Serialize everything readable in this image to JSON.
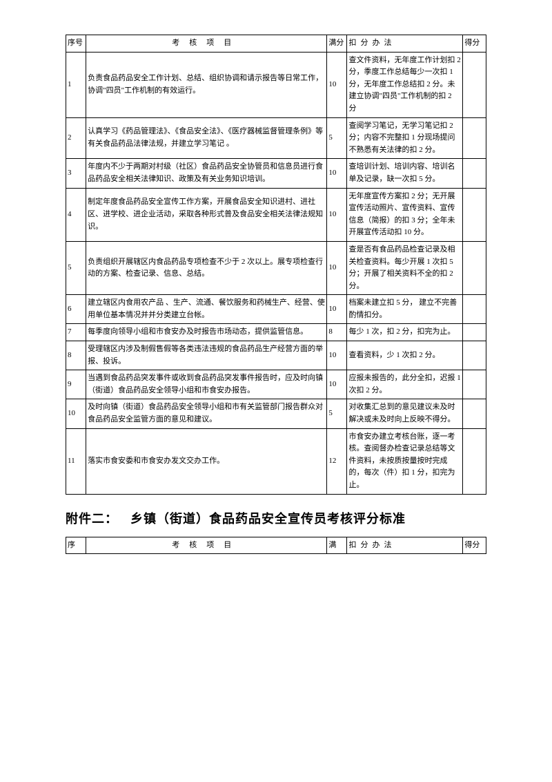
{
  "header": {
    "seq": "序号",
    "item_spaced": "考核项目",
    "score": "满分",
    "method_spaced": "扣分办法",
    "final": "得分"
  },
  "rows": [
    {
      "seq": "1",
      "item": "负责食品药品安全工作计划、总结、组织协调和请示报告等日常工作，协调\"四员\"工作机制的有效运行。",
      "score": "10",
      "method": "查文件资料，无年度工作计划扣 2 分，季度工作总结每少一次扣 1 分，无年度工作总结扣 2 分。未建立协调\"四员\"工作机制的扣 2 分"
    },
    {
      "seq": "2",
      "item": "认真学习《药品管理法》、《食品安全法》、《医疗器械监督管理条例》等有关食品药品法律法规，并建立学习笔记 。",
      "score": "5",
      "method": "查阅学习笔记，无学习笔记扣 2 分；内容不完整扣 1 分现场提问不熟悉有关法律的扣 2 分。"
    },
    {
      "seq": "3",
      "item": "年度内不少于两期对村级（社区）食品药品安全协管员和信息员进行食品药品安全相关法律知识、政策及有关业务知识培训。",
      "score": "10",
      "method": "查培训计划、培训内容、培训名单及记录，缺一次扣 5 分。"
    },
    {
      "seq": "4",
      "item": "制定年度食品药品安全宣传工作方案，开展食品安全知识进村、进社区、进学校、进企业活动，采取各种形式普及食品安全相关法律法规知识。",
      "score": "10",
      "method": "无年度宣传方案扣 2 分；无开展宣传活动照片、宣传资料、宣传信息（简报）的扣 3 分；全年未开展宣传活动扣 10 分。"
    },
    {
      "seq": "5",
      "item": "负责组织开展辖区内食品药品专项检查不少于 2 次以上。展专项检查行动的方案、检查记录、信息、总结。",
      "score": "10",
      "method": "查是否有食品药品检查记录及相关检查资料。每少开展 1 次扣 5 分；开展了相关资料不全的扣 2 分。"
    },
    {
      "seq": "6",
      "item": "建立辖区内食用农产品 、生产、流通、餐饮服务和药械生产、经营、使用单位基本情况并并分类建立台帐。",
      "score": "10",
      "method": "档案未建立扣 5 分， 建立不完善酌情扣分。"
    },
    {
      "seq": "7",
      "item": "每季度向领导小组和市食安办及时报告市场动态，提供监管信息。",
      "score": "8",
      "method": "每少 1 次，扣 2 分，扣完为止。"
    },
    {
      "seq": "8",
      "item": "受理辖区内涉及制假售假等各类违法违规的食品药品生产经营方面的举报、投诉。",
      "score": "10",
      "method": "查看资料，少 1 次扣 2 分。"
    },
    {
      "seq": "9",
      "item": "当遇到食品药品突发事件或收到食品药品突发事件报告时，应及时向镇（街道）食品药品安全领导小组和市食安办报告。",
      "score": "10",
      "method": " 应报未报告的，此分全扣，迟报 1 次扣 2 分。"
    },
    {
      "seq": "10",
      "item": "及时向镇（街道）食品药品安全领导小组和市有关监管部门报告群众对食品药品安全监管方面的意见和建议。",
      "score": "5",
      "method": "对收集汇总到的意见建议未及时解决或未及时向上反映不得分。"
    },
    {
      "seq": "11",
      "item": "落实市食安委和市食安办发文交办工作。",
      "score": "12",
      "method": "市食安办建立考核台账，逐一考核。查阅督办检查记录总结等文件资料，未按质按量按时完成的，每次（件）扣 1 分，扣完为止。"
    }
  ],
  "attachment_title_prefix": "附件二：",
  "attachment_title": "乡镇（街道）食品药品安全宣传员考核评分标准",
  "footer_header": {
    "seq": "序",
    "item_spaced": "考核项目",
    "score": "满",
    "method_spaced": "扣分办法",
    "final": "得分"
  }
}
